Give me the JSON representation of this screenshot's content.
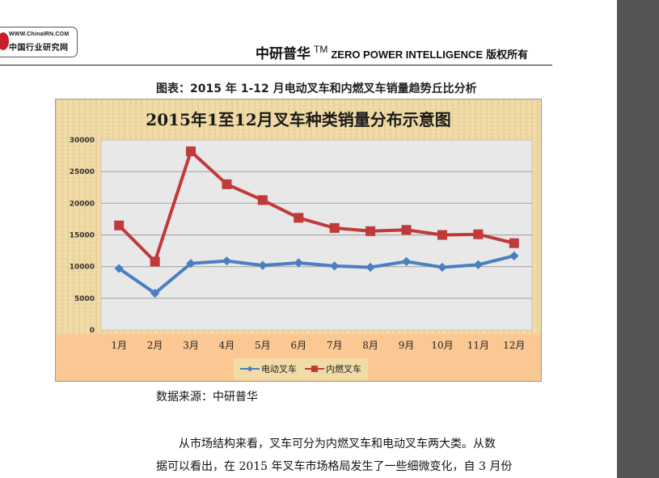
{
  "logo": {
    "url_text": "WWW.ChinaIRN.COM",
    "name": "中国行业研究网"
  },
  "header": {
    "brand": "中研普华",
    "tm": "TM",
    "english": "ZERO POWER INTELLIGENCE",
    "rights": "版权所有"
  },
  "figure": {
    "caption": "图表：2015 年 1-12 月电动叉车和内燃叉车销量趋势丘比分析",
    "source": "数据来源：中研普华"
  },
  "chart_data": {
    "type": "line",
    "title": "2015年1至12月叉车种类销量分布示意图",
    "categories": [
      "1月",
      "2月",
      "3月",
      "4月",
      "5月",
      "6月",
      "7月",
      "8月",
      "9月",
      "10月",
      "11月",
      "12月"
    ],
    "series": [
      {
        "name": "电动叉车",
        "color": "#4a7fc1",
        "marker": "diamond",
        "values": [
          9700,
          5800,
          10500,
          10900,
          10200,
          10600,
          10100,
          9900,
          10800,
          9900,
          10300,
          11700
        ]
      },
      {
        "name": "内燃叉车",
        "color": "#c0393b",
        "marker": "square",
        "values": [
          16500,
          10800,
          28200,
          23000,
          20500,
          17700,
          16100,
          15600,
          15800,
          15000,
          15100,
          13700
        ]
      }
    ],
    "xlabel": "",
    "ylabel": "",
    "ylim": [
      0,
      30000
    ],
    "yticks": [
      "30000",
      "25000",
      "20000",
      "15000",
      "10000",
      "5000",
      "0"
    ],
    "grid": true,
    "legend_position": "bottom"
  },
  "body_text": {
    "line1": "从市场结构来看，叉车可分为内燃叉车和电动叉车两大类。从数",
    "line2": "据可以看出，在 2015 年叉车市场格局发生了一些细微变化，自 3 月份"
  }
}
